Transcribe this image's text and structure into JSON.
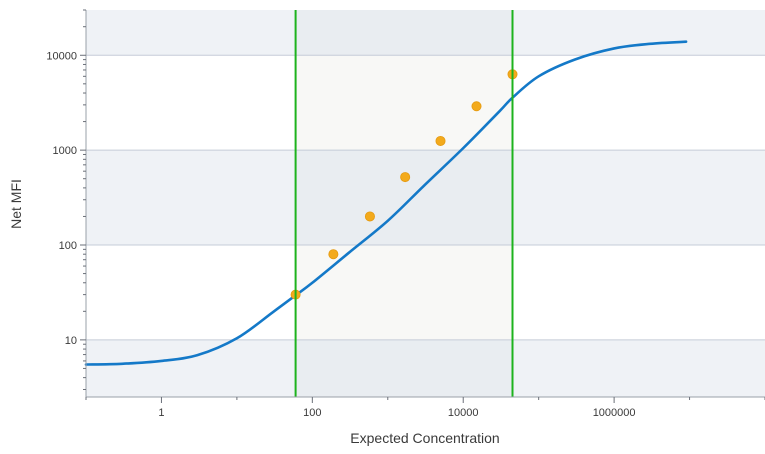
{
  "chart_data": {
    "type": "scatter",
    "title": "",
    "xlabel": "Expected Concentration",
    "ylabel": "Net MFI",
    "xscale": "log",
    "yscale": "log",
    "xlim": [
      0.1,
      100000000
    ],
    "ylim": [
      2.5,
      30000
    ],
    "x_ticks": [
      1,
      100,
      10000,
      1000000
    ],
    "x_tick_labels": [
      "1",
      "100",
      "10000",
      "1000000"
    ],
    "y_ticks": [
      10,
      100,
      1000,
      10000
    ],
    "y_tick_labels": [
      "10",
      "100",
      "1000",
      "10000"
    ],
    "grid": "horizontal bands",
    "legend": "none",
    "range_markers": {
      "lower": 60,
      "upper": 45000,
      "color": "#1db31d"
    },
    "colors": {
      "curve": "#1479c8",
      "points": "#f3aa1c",
      "band_shade": "#eff2f6",
      "inner_band_shade": "#f8f8f6",
      "gridline": "#c5ccd8"
    },
    "series": [
      {
        "type": "line",
        "x": [
          0.1,
          0.3,
          1,
          3,
          10,
          30,
          60,
          100,
          300,
          1000,
          3000,
          10000,
          30000,
          45000,
          100000,
          300000,
          1000000,
          3000000,
          9000000
        ],
        "y": [
          5.5,
          5.6,
          6.0,
          6.9,
          10.4,
          19.6,
          29.5,
          40,
          82,
          180,
          420,
          1050,
          2550,
          3570,
          6000,
          9000,
          11800,
          13200,
          13900
        ]
      },
      {
        "type": "scatter",
        "x": [
          60,
          190,
          580,
          1700,
          5000,
          15000,
          45000
        ],
        "y": [
          30,
          80,
          200,
          520,
          1250,
          2900,
          6300
        ]
      }
    ]
  }
}
